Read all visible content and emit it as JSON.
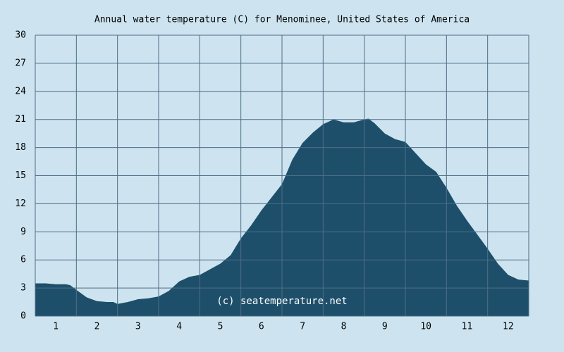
{
  "chart_data": {
    "type": "area",
    "title": "Annual water temperature (C) for Menominee, United States of America",
    "annotation": "(c) seatemperature.net",
    "x": [
      0.5,
      0.75,
      1.0,
      1.25,
      1.35,
      1.5,
      1.75,
      2.0,
      2.25,
      2.4,
      2.5,
      2.75,
      3.0,
      3.25,
      3.5,
      3.75,
      4.0,
      4.25,
      4.5,
      4.75,
      5.0,
      5.25,
      5.5,
      5.75,
      6.0,
      6.25,
      6.5,
      6.75,
      7.0,
      7.25,
      7.5,
      7.75,
      8.0,
      8.25,
      8.5,
      8.6,
      8.75,
      9.0,
      9.25,
      9.5,
      9.75,
      10.0,
      10.25,
      10.5,
      10.75,
      11.0,
      11.25,
      11.5,
      11.75,
      12.0,
      12.25,
      12.5
    ],
    "values": [
      3.5,
      3.5,
      3.4,
      3.4,
      3.3,
      2.8,
      2.0,
      1.6,
      1.5,
      1.5,
      1.3,
      1.5,
      1.8,
      1.9,
      2.1,
      2.7,
      3.7,
      4.2,
      4.4,
      5.0,
      5.6,
      6.5,
      8.3,
      9.7,
      11.3,
      12.7,
      14.1,
      16.7,
      18.5,
      19.6,
      20.5,
      21.0,
      20.7,
      20.7,
      21.0,
      21.1,
      20.6,
      19.5,
      18.9,
      18.6,
      17.4,
      16.2,
      15.4,
      13.7,
      11.8,
      10.2,
      8.7,
      7.2,
      5.6,
      4.4,
      3.9,
      3.8
    ],
    "color": "#1e4f6a",
    "xlim": [
      0.5,
      12.5
    ],
    "xticks": [
      1,
      2,
      3,
      4,
      5,
      6,
      7,
      8,
      9,
      10,
      11,
      12
    ],
    "ylim": [
      0,
      30
    ],
    "yticks": [
      0,
      3,
      6,
      9,
      12,
      15,
      18,
      21,
      24,
      27,
      30
    ],
    "grid": true
  }
}
